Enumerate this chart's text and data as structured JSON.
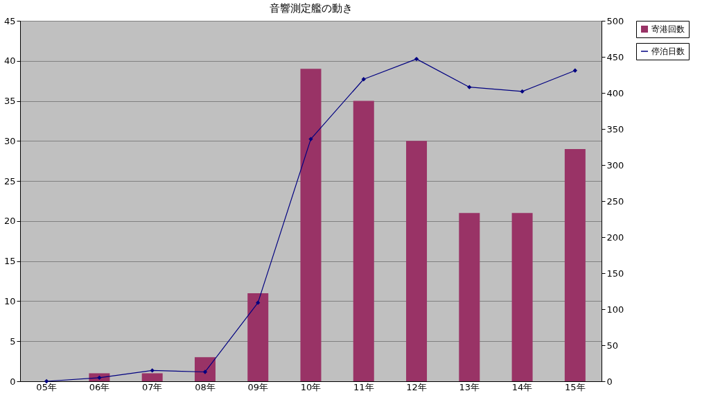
{
  "chart_data": {
    "type": "bar",
    "title": "音響測定艦の動き",
    "categories": [
      "05年",
      "06年",
      "07年",
      "08年",
      "09年",
      "10年",
      "11年",
      "12年",
      "13年",
      "14年",
      "15年"
    ],
    "series": [
      {
        "name": "寄港回数",
        "color": "#993366",
        "values": [
          0,
          1,
          1,
          3,
          11,
          39,
          35,
          30,
          21,
          21,
          29
        ]
      },
      {
        "name": "停泊日数",
        "type": "line",
        "axis": "y2",
        "color": "#000080",
        "marker": "diamond",
        "values": [
          0,
          5,
          15,
          13,
          109,
          336,
          419,
          447,
          408,
          402,
          431
        ]
      }
    ],
    "ylim": [
      0,
      45
    ],
    "yticks": [
      0,
      5,
      10,
      15,
      20,
      25,
      30,
      35,
      40,
      45
    ],
    "y2lim": [
      0,
      500
    ],
    "y2ticks": [
      0,
      50,
      100,
      150,
      200,
      250,
      300,
      350,
      400,
      450,
      500
    ],
    "grid": "y",
    "legend": "right"
  }
}
